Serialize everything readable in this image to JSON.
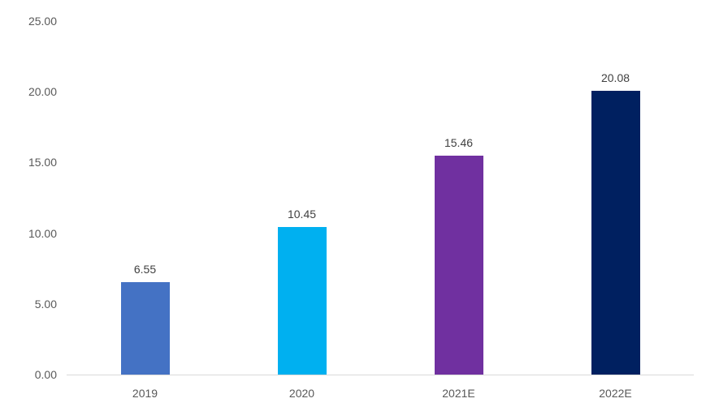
{
  "chart_data": {
    "type": "bar",
    "title": "",
    "xlabel": "",
    "ylabel": "",
    "categories": [
      "2019",
      "2020",
      "2021E",
      "2022E"
    ],
    "values": [
      6.55,
      10.45,
      15.46,
      20.08
    ],
    "value_labels": [
      "6.55",
      "10.45",
      "15.46",
      "20.08"
    ],
    "bar_colors": [
      "#4472c4",
      "#00b0f0",
      "#7030a0",
      "#002060"
    ],
    "yticks": [
      0,
      5,
      10,
      15,
      20,
      25
    ],
    "ytick_labels": [
      "0.00",
      "5.00",
      "10.00",
      "15.00",
      "20.00",
      "25.00"
    ],
    "ylim": [
      0,
      25
    ],
    "grid": false,
    "legend": null,
    "colors": {
      "axis_line": "#d9d9d9",
      "tick_label": "#595959",
      "value_label": "#404040",
      "background": "#ffffff"
    }
  }
}
